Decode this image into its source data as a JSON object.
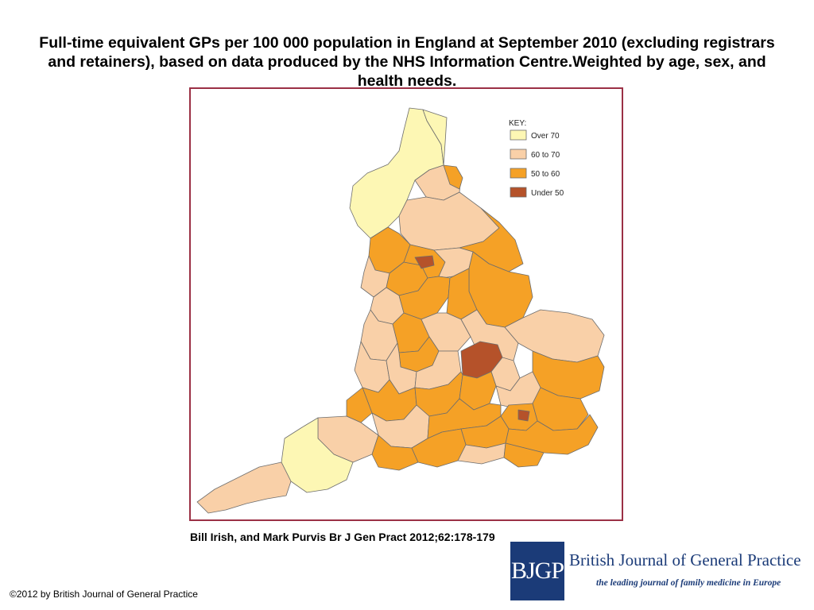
{
  "title": "Full-time equivalent GPs per 100 000 population in England at September 2010 (excluding registrars and retainers), based on data produced by the NHS Information Centre.Weighted by age, sex, and health needs.",
  "legend": {
    "heading": "KEY:",
    "items": [
      {
        "label": "Over 70",
        "color": "#fdf7b4"
      },
      {
        "label": "60 to 70",
        "color": "#f9d0a8"
      },
      {
        "label": "50 to 60",
        "color": "#f5a126"
      },
      {
        "label": "Under 50",
        "color": "#b5522a"
      }
    ]
  },
  "citation": "Bill Irish, and Mark Purvis Br J Gen Pract 2012;62:178-179",
  "copyright": "©2012 by British Journal of General Practice",
  "logo": {
    "badge": "BJGP",
    "journal": "British Journal of General Practice",
    "tagline": "the leading journal of family medicine in Europe"
  },
  "colors": {
    "frame_border": "#9b3045",
    "logo_blue": "#1b3b78",
    "region_outline": "#6d6d6d"
  }
}
